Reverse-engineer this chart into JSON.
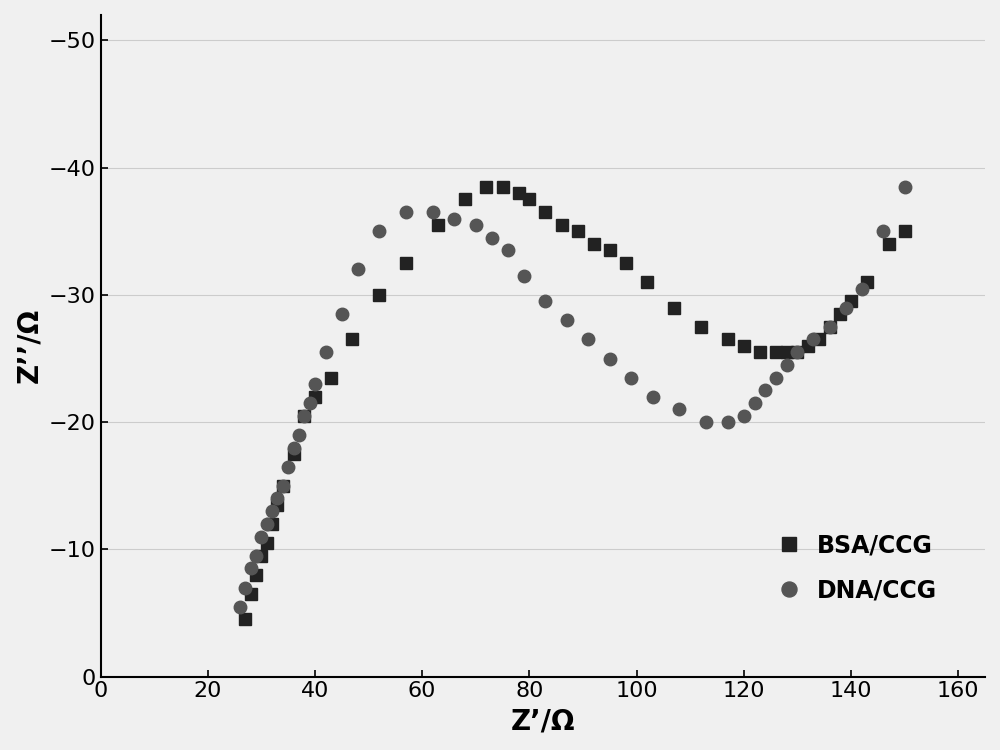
{
  "bsa_x": [
    27,
    28,
    29,
    30,
    31,
    32,
    33,
    34,
    36,
    38,
    40,
    43,
    47,
    52,
    57,
    63,
    68,
    72,
    75,
    78,
    80,
    83,
    86,
    89,
    92,
    95,
    98,
    102,
    107,
    112,
    117,
    120,
    123,
    126,
    128,
    130,
    132,
    134,
    136,
    138,
    140,
    143,
    147,
    150
  ],
  "bsa_y": [
    -4.5,
    -6.5,
    -8.0,
    -9.5,
    -10.5,
    -12.0,
    -13.5,
    -15.0,
    -17.5,
    -20.5,
    -22.0,
    -23.5,
    -26.5,
    -30.0,
    -32.5,
    -35.5,
    -37.5,
    -38.5,
    -38.5,
    -38.0,
    -37.5,
    -36.5,
    -35.5,
    -35.0,
    -34.0,
    -33.5,
    -32.5,
    -31.0,
    -29.0,
    -27.5,
    -26.5,
    -26.0,
    -25.5,
    -25.5,
    -25.5,
    -25.5,
    -26.0,
    -26.5,
    -27.5,
    -28.5,
    -29.5,
    -31.0,
    -34.0,
    -35.0
  ],
  "dna_x": [
    26,
    27,
    28,
    29,
    30,
    31,
    32,
    33,
    34,
    35,
    36,
    37,
    38,
    39,
    40,
    42,
    45,
    48,
    52,
    57,
    62,
    66,
    70,
    73,
    76,
    79,
    83,
    87,
    91,
    95,
    99,
    103,
    108,
    113,
    117,
    120,
    122,
    124,
    126,
    128,
    130,
    133,
    136,
    139,
    142,
    146,
    150
  ],
  "dna_y": [
    -5.5,
    -7.0,
    -8.5,
    -9.5,
    -11.0,
    -12.0,
    -13.0,
    -14.0,
    -15.0,
    -16.5,
    -18.0,
    -19.0,
    -20.5,
    -21.5,
    -23.0,
    -25.5,
    -28.5,
    -32.0,
    -35.0,
    -36.5,
    -36.5,
    -36.0,
    -35.5,
    -34.5,
    -33.5,
    -31.5,
    -29.5,
    -28.0,
    -26.5,
    -25.0,
    -23.5,
    -22.0,
    -21.0,
    -20.0,
    -20.0,
    -20.5,
    -21.5,
    -22.5,
    -23.5,
    -24.5,
    -25.5,
    -26.5,
    -27.5,
    -29.0,
    -30.5,
    -35.0,
    -38.5
  ],
  "bsa_color": "#222222",
  "dna_color": "#555555",
  "bsa_marker": "s",
  "dna_marker": "o",
  "bsa_markersize": 8,
  "dna_markersize": 9,
  "xlabel": "Z’/Ω",
  "ylabel": "Z’’/Ω",
  "xlim": [
    0,
    165
  ],
  "ylim_bottom": 0,
  "ylim_top": -52,
  "xticks": [
    0,
    20,
    40,
    60,
    80,
    100,
    120,
    140,
    160
  ],
  "yticks": [
    0,
    -10,
    -20,
    -30,
    -40,
    -50
  ],
  "xlabel_fontsize": 20,
  "ylabel_fontsize": 20,
  "tick_fontsize": 16,
  "legend_fontsize": 17,
  "background_color": "#f0f0f0",
  "grid_color": "#cccccc"
}
